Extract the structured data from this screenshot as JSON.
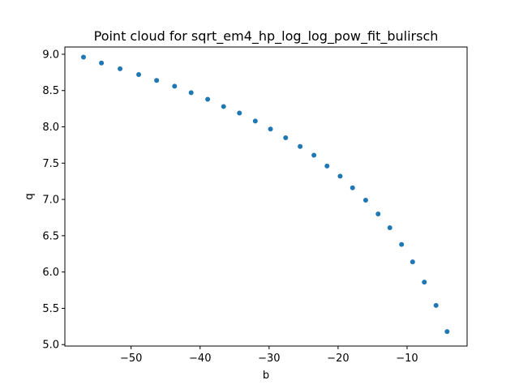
{
  "chart_data": {
    "type": "scatter",
    "title": "Point cloud for sqrt_em4_hp_log_log_pow_fit_bulirsch",
    "xlabel": "b",
    "ylabel": "q",
    "xlim": [
      -59.6,
      -1.3
    ],
    "ylim": [
      4.98,
      9.1
    ],
    "xticks": [
      -50,
      -40,
      -30,
      -20,
      -10
    ],
    "yticks": [
      5.0,
      5.5,
      6.0,
      6.5,
      7.0,
      7.5,
      8.0,
      8.5,
      9.0
    ],
    "xtick_labels": [
      "−50",
      "−40",
      "−30",
      "−20",
      "−10"
    ],
    "ytick_labels": [
      "5.0",
      "5.5",
      "6.0",
      "6.5",
      "7.0",
      "7.5",
      "8.0",
      "8.5",
      "9.0"
    ],
    "grid": false,
    "marker_color": "#1f77b4",
    "points": [
      {
        "x": -56.9,
        "y": 8.96
      },
      {
        "x": -54.3,
        "y": 8.88
      },
      {
        "x": -51.6,
        "y": 8.8
      },
      {
        "x": -48.9,
        "y": 8.72
      },
      {
        "x": -46.3,
        "y": 8.64
      },
      {
        "x": -43.7,
        "y": 8.56
      },
      {
        "x": -41.3,
        "y": 8.47
      },
      {
        "x": -38.9,
        "y": 8.38
      },
      {
        "x": -36.6,
        "y": 8.28
      },
      {
        "x": -34.3,
        "y": 8.19
      },
      {
        "x": -32.0,
        "y": 8.08
      },
      {
        "x": -29.8,
        "y": 7.97
      },
      {
        "x": -27.6,
        "y": 7.85
      },
      {
        "x": -25.5,
        "y": 7.73
      },
      {
        "x": -23.5,
        "y": 7.61
      },
      {
        "x": -21.6,
        "y": 7.46
      },
      {
        "x": -19.7,
        "y": 7.32
      },
      {
        "x": -17.9,
        "y": 7.16
      },
      {
        "x": -16.0,
        "y": 6.99
      },
      {
        "x": -14.2,
        "y": 6.8
      },
      {
        "x": -12.5,
        "y": 6.61
      },
      {
        "x": -10.8,
        "y": 6.38
      },
      {
        "x": -9.2,
        "y": 6.14
      },
      {
        "x": -7.5,
        "y": 5.86
      },
      {
        "x": -5.8,
        "y": 5.54
      },
      {
        "x": -4.2,
        "y": 5.18
      }
    ]
  }
}
